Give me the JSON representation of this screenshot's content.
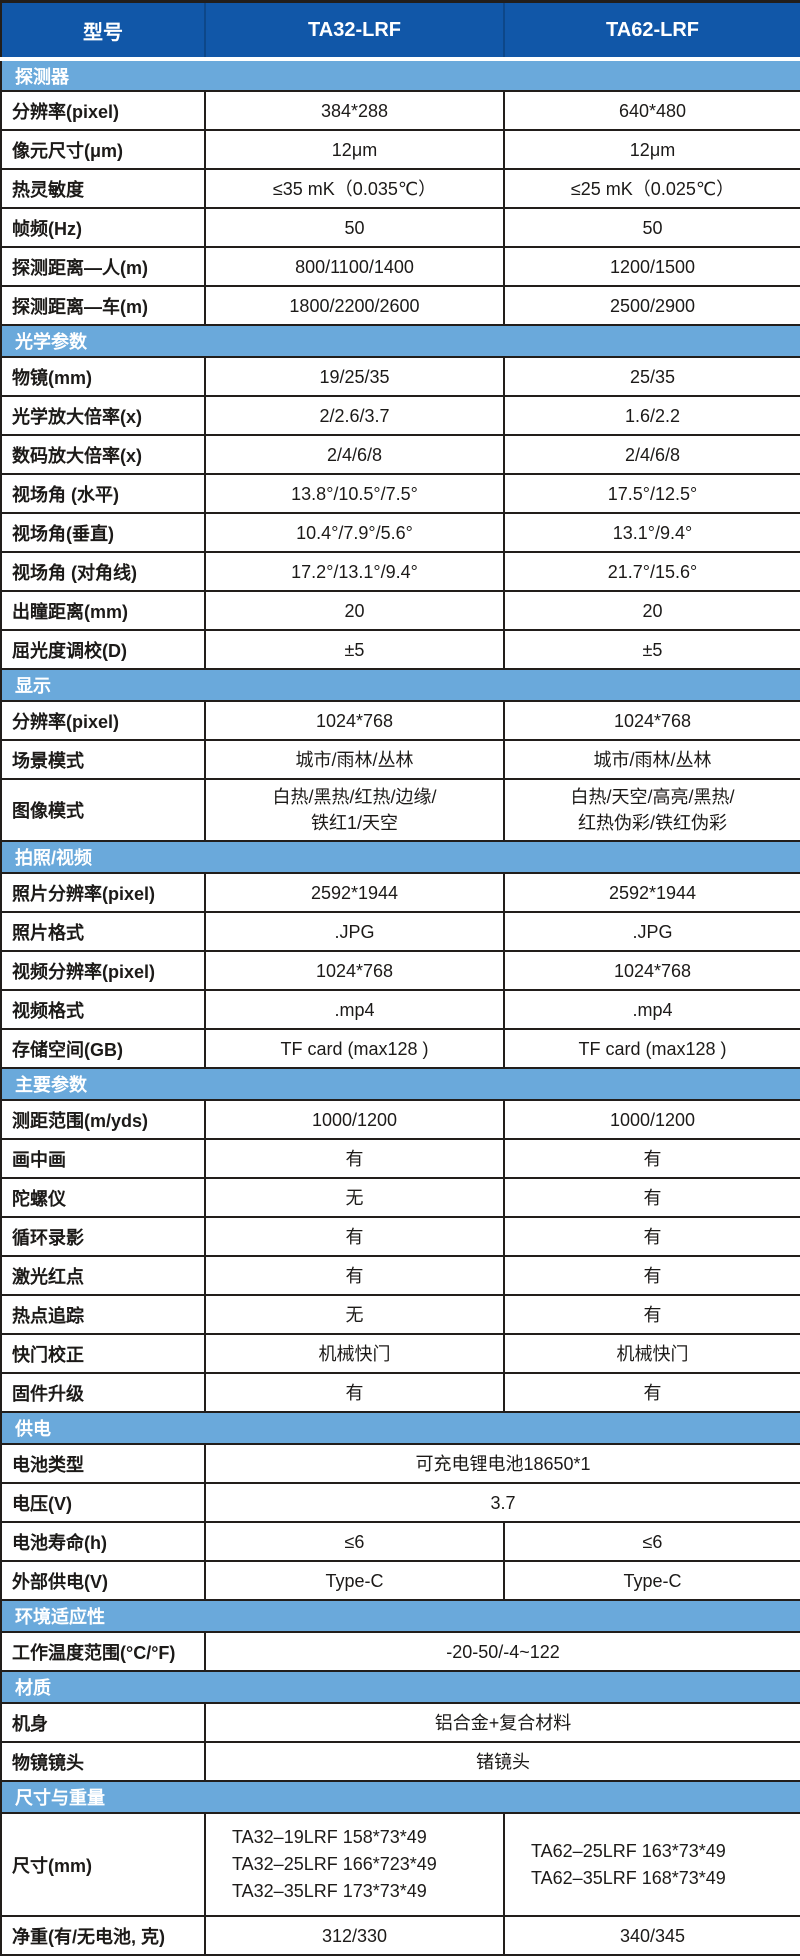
{
  "colors": {
    "header_bg": "#1157A8",
    "section_bg": "#6AA9DB",
    "border": "#221E1B",
    "text": "#1C1A18"
  },
  "header": {
    "model_label": "型号",
    "product_a": "TA32-LRF",
    "product_b": "TA62-LRF"
  },
  "sections": [
    {
      "title": "探测器",
      "rows": [
        {
          "label": "分辨率(pixel)",
          "a": "384*288",
          "b": "640*480"
        },
        {
          "label": "像元尺寸(μm)",
          "a": "12μm",
          "b": "12μm"
        },
        {
          "label": "热灵敏度",
          "a": "≤35 mK（0.035℃）",
          "b": "≤25 mK（0.025℃）"
        },
        {
          "label": "帧频(Hz)",
          "a": "50",
          "b": "50"
        },
        {
          "label": "探测距离—人(m)",
          "a": "800/1100/1400",
          "b": "1200/1500"
        },
        {
          "label": "探测距离—车(m)",
          "a": "1800/2200/2600",
          "b": "2500/2900"
        }
      ]
    },
    {
      "title": "光学参数",
      "rows": [
        {
          "label": "物镜(mm)",
          "a": "19/25/35",
          "b": "25/35"
        },
        {
          "label": "光学放大倍率(x)",
          "a": "2/2.6/3.7",
          "b": "1.6/2.2"
        },
        {
          "label": "数码放大倍率(x)",
          "a": "2/4/6/8",
          "b": "2/4/6/8"
        },
        {
          "label": "视场角 (水平)",
          "a": "13.8°/10.5°/7.5°",
          "b": "17.5°/12.5°"
        },
        {
          "label": "视场角(垂直)",
          "a": "10.4°/7.9°/5.6°",
          "b": "13.1°/9.4°"
        },
        {
          "label": "视场角 (对角线)",
          "a": "17.2°/13.1°/9.4°",
          "b": "21.7°/15.6°"
        },
        {
          "label": "出瞳距离(mm)",
          "a": "20",
          "b": "20"
        },
        {
          "label": "屈光度调校(D)",
          "a": "±5",
          "b": "±5"
        }
      ]
    },
    {
      "title": "显示",
      "rows": [
        {
          "label": "分辨率(pixel)",
          "a": "1024*768",
          "b": "1024*768"
        },
        {
          "label": "场景模式",
          "a": "城市/雨林/丛林",
          "b": "城市/雨林/丛林"
        },
        {
          "label": "图像模式",
          "a": "白热/黑热/红热/边缘/\n铁红1/天空",
          "b": "白热/天空/高亮/黑热/\n红热伪彩/铁红伪彩"
        }
      ]
    },
    {
      "title": "拍照/视频",
      "rows": [
        {
          "label": "照片分辨率(pixel)",
          "a": "2592*1944",
          "b": "2592*1944"
        },
        {
          "label": "照片格式",
          "a": ".JPG",
          "b": ".JPG"
        },
        {
          "label": "视频分辨率(pixel)",
          "a": "1024*768",
          "b": "1024*768"
        },
        {
          "label": "视频格式",
          "a": ".mp4",
          "b": ".mp4"
        },
        {
          "label": "存储空间(GB)",
          "a": "TF card (max128 )",
          "b": "TF card (max128 )"
        }
      ]
    },
    {
      "title": "主要参数",
      "rows": [
        {
          "label": "测距范围(m/yds)",
          "a": "1000/1200",
          "b": "1000/1200"
        },
        {
          "label": "画中画",
          "a": "有",
          "b": "有"
        },
        {
          "label": "陀螺仪",
          "a": "无",
          "b": "有"
        },
        {
          "label": "循环录影",
          "a": "有",
          "b": "有"
        },
        {
          "label": "激光红点",
          "a": "有",
          "b": "有"
        },
        {
          "label": "热点追踪",
          "a": "无",
          "b": "有"
        },
        {
          "label": "快门校正",
          "a": "机械快门",
          "b": "机械快门"
        },
        {
          "label": "固件升级",
          "a": "有",
          "b": "有"
        }
      ]
    },
    {
      "title": "供电",
      "rows": [
        {
          "label": "电池类型",
          "span": "可充电锂电池18650*1"
        },
        {
          "label": "电压(V)",
          "span": "3.7"
        },
        {
          "label": "电池寿命(h)",
          "a": "≤6",
          "b": "≤6"
        },
        {
          "label": "外部供电(V)",
          "a": "Type-C",
          "b": "Type-C"
        }
      ]
    },
    {
      "title": "环境适应性",
      "rows": [
        {
          "label": "工作温度范围(°C/°F)",
          "span": "-20-50/-4~122"
        }
      ]
    },
    {
      "title": "材质",
      "rows": [
        {
          "label": "机身",
          "span": "铝合金+复合材料"
        },
        {
          "label": "物镜镜头",
          "span": "锗镜头"
        }
      ]
    },
    {
      "title": "尺寸与重量",
      "rows": [
        {
          "label": "尺寸(mm)",
          "a": "TA32–19LRF 158*73*49\nTA32–25LRF 166*723*49\nTA32–35LRF 173*73*49",
          "b": "TA62–25LRF 163*73*49\nTA62–35LRF 168*73*49"
        },
        {
          "label": "净重(有/无电池, 克)",
          "a": "312/330",
          "b": "340/345"
        }
      ]
    }
  ]
}
